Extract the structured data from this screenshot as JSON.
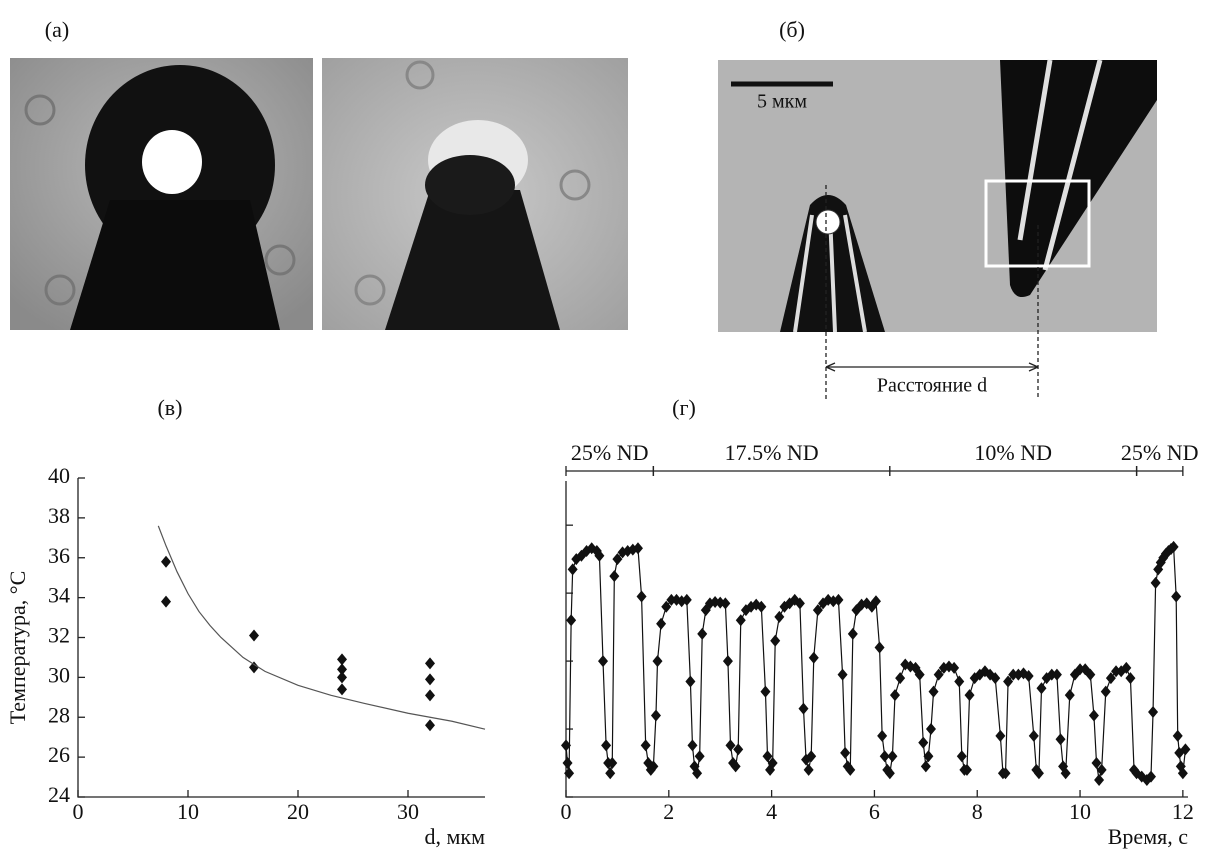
{
  "figure": {
    "panel_labels": [
      "(а)",
      "(б)",
      "(в)",
      "(г)"
    ],
    "scale_bar": "5 мкм",
    "distance_label": "Расстояние d"
  },
  "chart_data": [
    {
      "type": "scatter",
      "xlabel": "d, мкм",
      "ylabel": "Температура, °C",
      "xlim": [
        0,
        37
      ],
      "ylim": [
        24,
        40
      ],
      "xticks": [
        0,
        10,
        20,
        30
      ],
      "yticks": [
        24,
        26,
        28,
        30,
        32,
        34,
        36,
        38,
        40
      ],
      "series": [
        {
          "mode": "markers",
          "color": "#111111",
          "x": [
            8,
            8,
            16,
            16,
            24,
            24,
            24,
            24,
            32,
            32,
            32,
            32
          ],
          "values": [
            35.8,
            33.8,
            32.1,
            30.5,
            30.9,
            30.4,
            30.0,
            29.4,
            30.7,
            29.9,
            29.1,
            27.6
          ]
        },
        {
          "mode": "line",
          "color": "#555555",
          "x": [
            7.3,
            8,
            9,
            10,
            11,
            12,
            13,
            14,
            15,
            17,
            20,
            23,
            26,
            30,
            34,
            37
          ],
          "values": [
            37.6,
            36.6,
            35.3,
            34.2,
            33.3,
            32.6,
            32.0,
            31.5,
            31.0,
            30.3,
            29.6,
            29.1,
            28.7,
            28.2,
            27.8,
            27.4
          ]
        }
      ]
    },
    {
      "type": "line",
      "xlabel": "Время, с",
      "xlim": [
        0,
        12.1
      ],
      "ylim": [
        0,
        4.65
      ],
      "xticks": [
        0,
        2,
        4,
        6,
        8,
        10,
        12
      ],
      "yticks": [
        0,
        1,
        2,
        3,
        4
      ],
      "ytick_labels": false,
      "annotations": [
        {
          "text": "25% ND",
          "x": [
            0,
            1.7
          ]
        },
        {
          "text": "17.5% ND",
          "x": [
            1.7,
            6.3
          ]
        },
        {
          "text": "10% ND",
          "x": [
            6.3,
            11.1
          ]
        },
        {
          "text": "25% ND",
          "x": [
            11.1,
            12
          ]
        }
      ],
      "series": [
        {
          "mode": "line+markers",
          "color": "#111111",
          "x": [
            0,
            0.03,
            0.06,
            0.1,
            0.13,
            0.2,
            0.3,
            0.4,
            0.5,
            0.6,
            0.65,
            0.72,
            0.78,
            0.82,
            0.86,
            0.9,
            0.94,
            1.0,
            1.1,
            1.2,
            1.3,
            1.4,
            1.47,
            1.55,
            1.6,
            1.65,
            1.7,
            1.75,
            1.78,
            1.85,
            1.95,
            2.05,
            2.15,
            2.25,
            2.35,
            2.42,
            2.46,
            2.5,
            2.55,
            2.6,
            2.65,
            2.72,
            2.8,
            2.9,
            3.0,
            3.1,
            3.15,
            3.2,
            3.25,
            3.3,
            3.35,
            3.4,
            3.5,
            3.6,
            3.7,
            3.8,
            3.88,
            3.92,
            3.97,
            4.02,
            4.07,
            4.15,
            4.25,
            4.35,
            4.45,
            4.55,
            4.62,
            4.67,
            4.72,
            4.77,
            4.82,
            4.9,
            5.0,
            5.1,
            5.2,
            5.3,
            5.38,
            5.43,
            5.48,
            5.53,
            5.58,
            5.65,
            5.75,
            5.85,
            5.95,
            6.03,
            6.1,
            6.15,
            6.2,
            6.25,
            6.3,
            6.35,
            6.4,
            6.5,
            6.6,
            6.7,
            6.8,
            6.88,
            6.95,
            7.0,
            7.05,
            7.1,
            7.15,
            7.25,
            7.35,
            7.45,
            7.55,
            7.65,
            7.7,
            7.75,
            7.8,
            7.85,
            7.95,
            8.05,
            8.15,
            8.25,
            8.35,
            8.45,
            8.5,
            8.55,
            8.6,
            8.7,
            8.8,
            8.9,
            9.0,
            9.1,
            9.15,
            9.2,
            9.25,
            9.35,
            9.45,
            9.55,
            9.62,
            9.67,
            9.72,
            9.8,
            9.9,
            10.0,
            10.1,
            10.2,
            10.27,
            10.32,
            10.37,
            10.42,
            10.5,
            10.6,
            10.7,
            10.8,
            10.9,
            10.98,
            11.05,
            11.1,
            11.2,
            11.3,
            11.38,
            11.42,
            11.47,
            11.52,
            11.57,
            11.62,
            11.67,
            11.72,
            11.77,
            11.82,
            11.87,
            11.9,
            11.93,
            11.96,
            12.0,
            12.05
          ],
          "values": [
            0.76,
            0.5,
            0.35,
            2.6,
            3.35,
            3.5,
            3.55,
            3.62,
            3.66,
            3.62,
            3.55,
            2.0,
            0.76,
            0.5,
            0.35,
            0.5,
            3.25,
            3.5,
            3.6,
            3.62,
            3.64,
            3.66,
            2.95,
            0.76,
            0.5,
            0.4,
            0.45,
            1.2,
            2.0,
            2.55,
            2.8,
            2.9,
            2.9,
            2.88,
            2.9,
            1.7,
            0.76,
            0.45,
            0.35,
            0.6,
            2.4,
            2.75,
            2.85,
            2.87,
            2.86,
            2.85,
            2.0,
            0.76,
            0.5,
            0.45,
            0.7,
            2.6,
            2.75,
            2.8,
            2.83,
            2.8,
            1.55,
            0.6,
            0.4,
            0.5,
            2.3,
            2.65,
            2.8,
            2.85,
            2.9,
            2.85,
            1.3,
            0.55,
            0.4,
            0.6,
            2.05,
            2.75,
            2.85,
            2.9,
            2.88,
            2.9,
            1.8,
            0.65,
            0.45,
            0.4,
            2.4,
            2.75,
            2.83,
            2.85,
            2.8,
            2.88,
            2.2,
            0.9,
            0.6,
            0.4,
            0.35,
            0.6,
            1.5,
            1.75,
            1.95,
            1.92,
            1.9,
            1.8,
            0.8,
            0.45,
            0.6,
            1.0,
            1.55,
            1.8,
            1.9,
            1.92,
            1.9,
            1.7,
            0.6,
            0.4,
            0.4,
            1.5,
            1.75,
            1.8,
            1.85,
            1.8,
            1.75,
            0.9,
            0.35,
            0.35,
            1.7,
            1.8,
            1.8,
            1.82,
            1.78,
            0.9,
            0.4,
            0.35,
            1.6,
            1.75,
            1.8,
            1.8,
            0.85,
            0.45,
            0.35,
            1.5,
            1.8,
            1.88,
            1.88,
            1.8,
            1.2,
            0.5,
            0.25,
            0.4,
            1.55,
            1.75,
            1.85,
            1.85,
            1.9,
            1.75,
            0.4,
            0.35,
            0.3,
            0.25,
            0.3,
            1.25,
            3.15,
            3.35,
            3.45,
            3.52,
            3.58,
            3.62,
            3.65,
            3.68,
            2.95,
            0.9,
            0.65,
            0.45,
            0.35,
            0.7
          ]
        }
      ]
    }
  ]
}
